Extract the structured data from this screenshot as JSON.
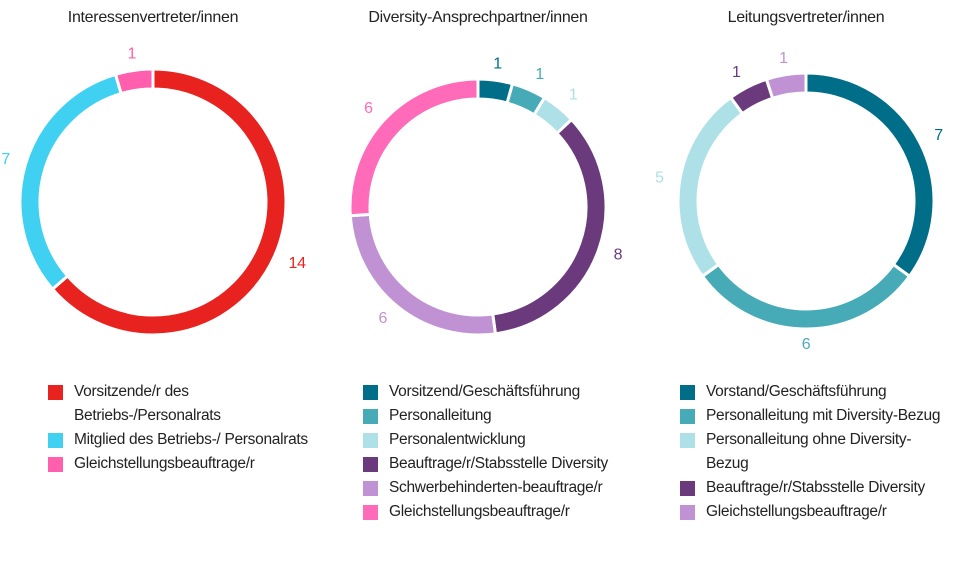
{
  "chart_data": [
    {
      "type": "donut",
      "title": "Interessenvertreter/innen",
      "categories": [
        "Vorsitzende/r des Betriebs-/Personalrats",
        "Mitglied des Betriebs-/ Personalrats",
        "Gleichstellungsbeauftrage/r"
      ],
      "values": [
        14,
        7,
        1
      ],
      "colors": [
        "#e8231f",
        "#3fd0f2",
        "#ff5fac"
      ]
    },
    {
      "type": "donut",
      "title": "Diversity-Ansprechpartner/innen",
      "categories": [
        "Vorsitzend/Geschäftsführung",
        "Personalleitung",
        "Personalentwicklung",
        "Beauftrage/r/Stabsstelle Diversity",
        "Schwerbehinderten-beauftrage/r",
        "Gleichstellungsbeauftrage/r"
      ],
      "values": [
        1,
        1,
        1,
        8,
        6,
        6
      ],
      "colors": [
        "#006d89",
        "#47abb7",
        "#aee0e7",
        "#6a3a7d",
        "#c092d4",
        "#ff6ab9"
      ]
    },
    {
      "type": "donut",
      "title": "Leitungsvertreter/innen",
      "categories": [
        "Vorstand/Geschäftsführung",
        "Personalleitung mit Diversity-Bezug",
        "Personalleitung ohne Diversity-Bezug",
        "Beauftrage/r/Stabsstelle Diversity",
        "Gleichstellungsbeauftrage/r"
      ],
      "values": [
        7,
        6,
        5,
        1,
        1
      ],
      "colors": [
        "#006d89",
        "#47abb7",
        "#aee0e7",
        "#6a3a7d",
        "#c092d4"
      ]
    }
  ]
}
